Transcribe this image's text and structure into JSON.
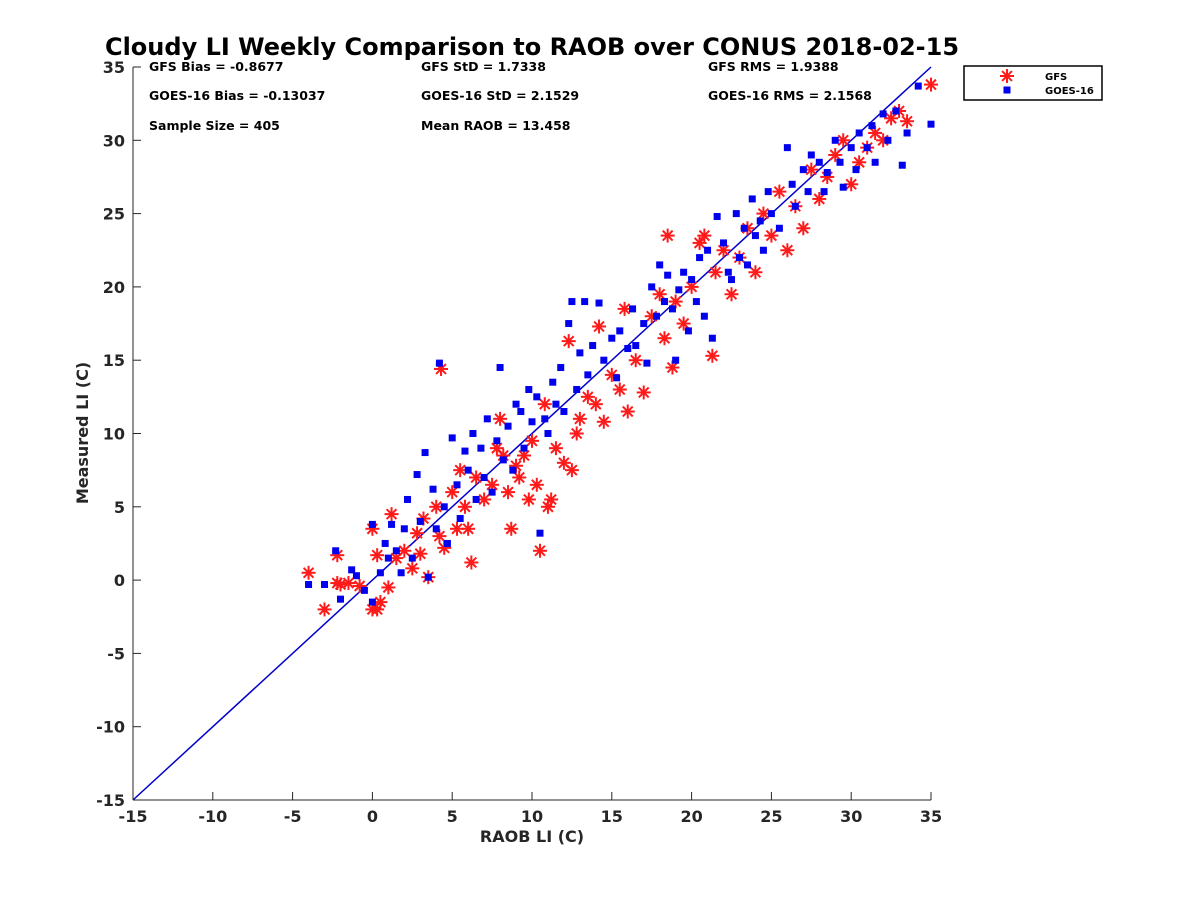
{
  "chart_data": {
    "type": "scatter",
    "title": "Cloudy LI Weekly Comparison to RAOB over CONUS 2018-02-15",
    "xlabel": "RAOB LI (C)",
    "ylabel": "Measured LI (C)",
    "xlim": [
      -15,
      35
    ],
    "ylim": [
      -15,
      35
    ],
    "xticks": [
      -15,
      -10,
      -5,
      0,
      5,
      10,
      15,
      20,
      25,
      30,
      35
    ],
    "yticks": [
      -15,
      -10,
      -5,
      0,
      5,
      10,
      15,
      20,
      25,
      30,
      35
    ],
    "grid": false,
    "legend_position": "top-right, outside plot",
    "reference_line": {
      "slope": 1,
      "intercept": 0,
      "color": "#0000cc"
    },
    "stats": [
      {
        "text": "GFS Bias = -0.8677",
        "col": 0,
        "row": 0
      },
      {
        "text": "GFS StD = 1.7338",
        "col": 1,
        "row": 0
      },
      {
        "text": "GFS RMS = 1.9388",
        "col": 2,
        "row": 0
      },
      {
        "text": "GOES-16 Bias = -0.13037",
        "col": 0,
        "row": 1
      },
      {
        "text": "GOES-16 StD = 2.1529",
        "col": 1,
        "row": 1
      },
      {
        "text": "GOES-16 RMS = 2.1568",
        "col": 2,
        "row": 1
      },
      {
        "text": "Sample Size = 405",
        "col": 0,
        "row": 2
      },
      {
        "text": "Mean RAOB = 13.458",
        "col": 1,
        "row": 2
      }
    ],
    "series": [
      {
        "name": "GFS",
        "marker": "asterisk",
        "color": "#ff1a1a",
        "points": [
          [
            -4,
            0.5
          ],
          [
            -3,
            -2
          ],
          [
            -2.2,
            1.7
          ],
          [
            -2.2,
            -0.2
          ],
          [
            -2,
            -0.3
          ],
          [
            -1.5,
            -0.2
          ],
          [
            -0.8,
            -0.4
          ],
          [
            0,
            3.5
          ],
          [
            0.3,
            1.7
          ],
          [
            0.5,
            -1.5
          ],
          [
            0.3,
            -2
          ],
          [
            0,
            -2
          ],
          [
            1,
            -0.5
          ],
          [
            1.2,
            4.5
          ],
          [
            1.5,
            1.5
          ],
          [
            2,
            2
          ],
          [
            2.5,
            0.8
          ],
          [
            2.8,
            3.2
          ],
          [
            3,
            1.8
          ],
          [
            3.5,
            0.2
          ],
          [
            3.2,
            4.2
          ],
          [
            4,
            5
          ],
          [
            4.2,
            3
          ],
          [
            4.5,
            2.2
          ],
          [
            4.3,
            14.4
          ],
          [
            5,
            6
          ],
          [
            5.3,
            3.5
          ],
          [
            5.5,
            7.5
          ],
          [
            5.8,
            5
          ],
          [
            6,
            3.5
          ],
          [
            6.2,
            1.2
          ],
          [
            6.5,
            7
          ],
          [
            7,
            5.5
          ],
          [
            7.5,
            6.5
          ],
          [
            7.8,
            9
          ],
          [
            8,
            11
          ],
          [
            8.2,
            8.5
          ],
          [
            8.5,
            6
          ],
          [
            8.7,
            3.5
          ],
          [
            9,
            7.8
          ],
          [
            9.2,
            7
          ],
          [
            9.5,
            8.5
          ],
          [
            9.8,
            5.5
          ],
          [
            10,
            9.5
          ],
          [
            10.3,
            6.5
          ],
          [
            10.5,
            2
          ],
          [
            10.8,
            12
          ],
          [
            11,
            5
          ],
          [
            11.2,
            5.5
          ],
          [
            11.5,
            9
          ],
          [
            12,
            8
          ],
          [
            12.3,
            16.3
          ],
          [
            12.5,
            7.5
          ],
          [
            12.8,
            10
          ],
          [
            13,
            11
          ],
          [
            13.5,
            12.5
          ],
          [
            14,
            12
          ],
          [
            14.2,
            17.3
          ],
          [
            14.5,
            10.8
          ],
          [
            15,
            14
          ],
          [
            15.5,
            13
          ],
          [
            15.8,
            18.5
          ],
          [
            16,
            11.5
          ],
          [
            16.5,
            15
          ],
          [
            17,
            12.8
          ],
          [
            17.5,
            18
          ],
          [
            18,
            19.5
          ],
          [
            18.3,
            16.5
          ],
          [
            18.5,
            23.5
          ],
          [
            18.8,
            14.5
          ],
          [
            19,
            19
          ],
          [
            19.5,
            17.5
          ],
          [
            20,
            20
          ],
          [
            20.5,
            23
          ],
          [
            20.8,
            23.5
          ],
          [
            21.3,
            15.3
          ],
          [
            21.5,
            21
          ],
          [
            22,
            22.5
          ],
          [
            22.5,
            19.5
          ],
          [
            23,
            22
          ],
          [
            23.5,
            24
          ],
          [
            24,
            21
          ],
          [
            24.5,
            25
          ],
          [
            25,
            23.5
          ],
          [
            25.5,
            26.5
          ],
          [
            26,
            22.5
          ],
          [
            26.5,
            25.5
          ],
          [
            27,
            24
          ],
          [
            27.5,
            28
          ],
          [
            28,
            26
          ],
          [
            28.5,
            27.5
          ],
          [
            29,
            29
          ],
          [
            29.5,
            30
          ],
          [
            30,
            27
          ],
          [
            30.5,
            28.5
          ],
          [
            31,
            29.5
          ],
          [
            31.5,
            30.5
          ],
          [
            32,
            30
          ],
          [
            32.5,
            31.5
          ],
          [
            33,
            32
          ],
          [
            33.5,
            31.3
          ],
          [
            35,
            33.8
          ]
        ]
      },
      {
        "name": "GOES-16",
        "marker": "square",
        "color": "#0000ee",
        "points": [
          [
            -4,
            -0.3
          ],
          [
            -3,
            -0.3
          ],
          [
            -2.3,
            2
          ],
          [
            -2,
            -1.3
          ],
          [
            -1.3,
            0.7
          ],
          [
            -1,
            0.3
          ],
          [
            -0.5,
            -0.7
          ],
          [
            0,
            3.8
          ],
          [
            0,
            -1.5
          ],
          [
            0.5,
            0.5
          ],
          [
            0.8,
            2.5
          ],
          [
            1,
            1.5
          ],
          [
            1.2,
            3.8
          ],
          [
            1.5,
            2
          ],
          [
            1.8,
            0.5
          ],
          [
            2,
            3.5
          ],
          [
            2.2,
            5.5
          ],
          [
            2.5,
            1.5
          ],
          [
            2.8,
            7.2
          ],
          [
            3,
            4
          ],
          [
            3.3,
            8.7
          ],
          [
            3.5,
            0.2
          ],
          [
            3.8,
            6.2
          ],
          [
            4,
            3.5
          ],
          [
            4.2,
            14.8
          ],
          [
            4.5,
            5
          ],
          [
            4.7,
            2.5
          ],
          [
            5,
            9.7
          ],
          [
            5.3,
            6.5
          ],
          [
            5.5,
            4.2
          ],
          [
            5.8,
            8.8
          ],
          [
            6,
            7.5
          ],
          [
            6.3,
            10
          ],
          [
            6.5,
            5.5
          ],
          [
            6.8,
            9
          ],
          [
            7,
            7
          ],
          [
            7.2,
            11
          ],
          [
            7.5,
            6
          ],
          [
            7.8,
            9.5
          ],
          [
            8,
            14.5
          ],
          [
            8.2,
            8.2
          ],
          [
            8.5,
            10.5
          ],
          [
            8.8,
            7.5
          ],
          [
            9,
            12
          ],
          [
            9.3,
            11.5
          ],
          [
            9.5,
            9
          ],
          [
            9.8,
            13
          ],
          [
            10,
            10.8
          ],
          [
            10.3,
            12.5
          ],
          [
            10.5,
            3.2
          ],
          [
            10.8,
            11
          ],
          [
            11,
            10
          ],
          [
            11.3,
            13.5
          ],
          [
            11.5,
            12
          ],
          [
            11.8,
            14.5
          ],
          [
            12,
            11.5
          ],
          [
            12.3,
            17.5
          ],
          [
            12.5,
            19
          ],
          [
            12.8,
            13
          ],
          [
            13,
            15.5
          ],
          [
            13.3,
            19
          ],
          [
            13.5,
            14
          ],
          [
            13.8,
            16
          ],
          [
            14.2,
            18.9
          ],
          [
            14.5,
            15
          ],
          [
            15,
            16.5
          ],
          [
            15.3,
            13.8
          ],
          [
            15.5,
            17
          ],
          [
            16,
            15.8
          ],
          [
            16.3,
            18.5
          ],
          [
            16.5,
            16
          ],
          [
            17,
            17.5
          ],
          [
            17.2,
            14.8
          ],
          [
            17.5,
            20
          ],
          [
            17.8,
            18
          ],
          [
            18,
            21.5
          ],
          [
            18.3,
            19
          ],
          [
            18.5,
            20.8
          ],
          [
            18.8,
            18.5
          ],
          [
            19,
            15
          ],
          [
            19.2,
            19.8
          ],
          [
            19.5,
            21
          ],
          [
            19.8,
            17
          ],
          [
            20,
            20.5
          ],
          [
            20.3,
            19
          ],
          [
            20.5,
            22
          ],
          [
            20.8,
            18
          ],
          [
            21,
            22.5
          ],
          [
            21.3,
            16.5
          ],
          [
            21.6,
            24.8
          ],
          [
            22,
            23
          ],
          [
            22.3,
            21
          ],
          [
            22.5,
            20.5
          ],
          [
            22.8,
            25
          ],
          [
            23,
            22
          ],
          [
            23.3,
            24
          ],
          [
            23.5,
            21.5
          ],
          [
            23.8,
            26
          ],
          [
            24,
            23.5
          ],
          [
            24.3,
            24.5
          ],
          [
            24.5,
            22.5
          ],
          [
            24.8,
            26.5
          ],
          [
            25,
            25
          ],
          [
            25.5,
            24
          ],
          [
            26,
            29.5
          ],
          [
            26.3,
            27
          ],
          [
            26.5,
            25.5
          ],
          [
            27,
            28
          ],
          [
            27.3,
            26.5
          ],
          [
            27.5,
            29
          ],
          [
            28,
            28.5
          ],
          [
            28.3,
            26.5
          ],
          [
            28.5,
            27.8
          ],
          [
            29,
            30
          ],
          [
            29.3,
            28.5
          ],
          [
            29.5,
            26.8
          ],
          [
            30,
            29.5
          ],
          [
            30.3,
            28
          ],
          [
            30.5,
            30.5
          ],
          [
            31,
            29.5
          ],
          [
            31.3,
            31
          ],
          [
            31.5,
            28.5
          ],
          [
            32,
            31.8
          ],
          [
            32.3,
            30
          ],
          [
            32.8,
            32
          ],
          [
            33.2,
            28.3
          ],
          [
            33.5,
            30.5
          ],
          [
            34.2,
            33.7
          ],
          [
            35,
            31.1
          ]
        ]
      }
    ]
  }
}
